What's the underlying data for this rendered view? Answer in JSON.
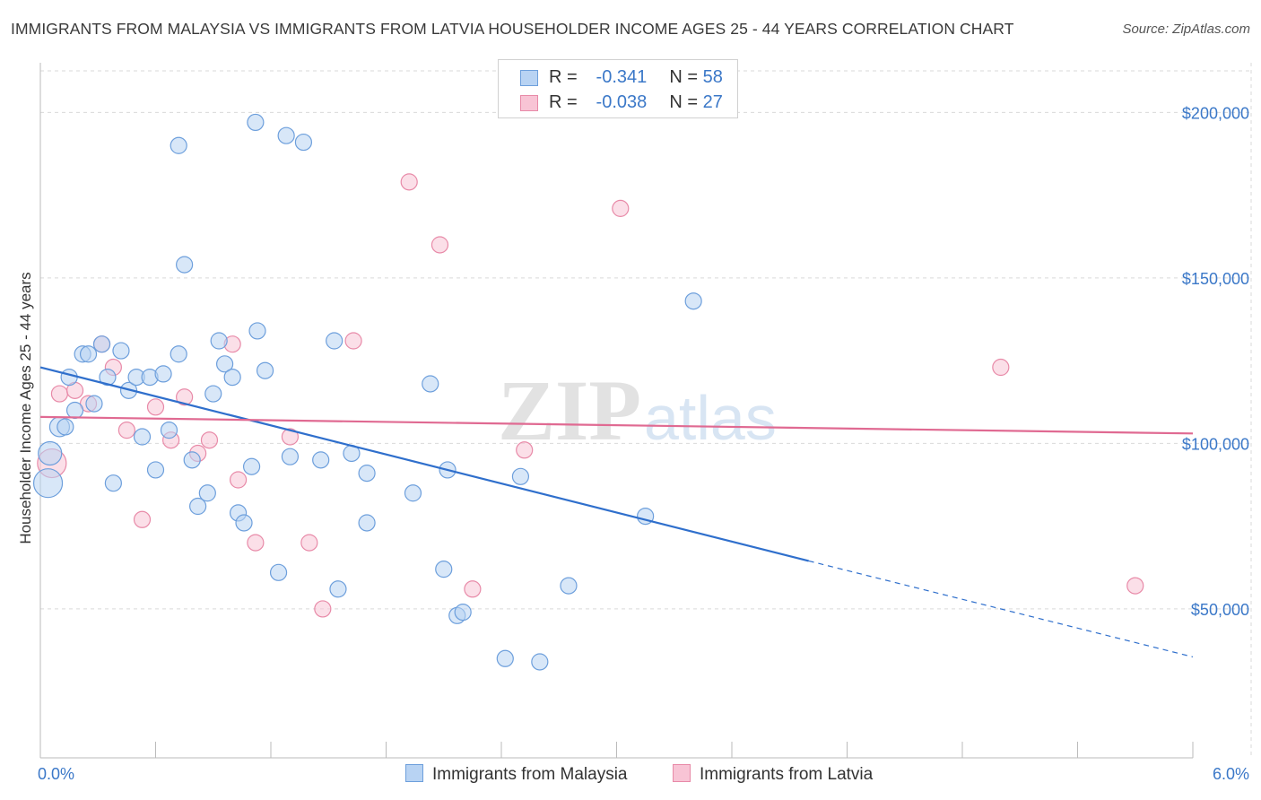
{
  "title": "IMMIGRANTS FROM MALAYSIA VS IMMIGRANTS FROM LATVIA HOUSEHOLDER INCOME AGES 25 - 44 YEARS CORRELATION CHART",
  "source": "Source: ZipAtlas.com",
  "watermark": {
    "zip": "ZIP",
    "atlas": "atlas"
  },
  "legend": {
    "r_label": "R =",
    "n_label": "N =",
    "rows": [
      {
        "r": "-0.341",
        "n": "58"
      },
      {
        "r": "-0.038",
        "n": "27"
      }
    ]
  },
  "bottom_legend": [
    "Immigrants from Malaysia",
    "Immigrants from Latvia"
  ],
  "colors": {
    "malaysia_fill": "#b8d3f3",
    "malaysia_stroke": "#6d9fdc",
    "malaysia_line": "#2f6fcc",
    "latvia_fill": "#f8c4d5",
    "latvia_stroke": "#e88aa8",
    "latvia_line": "#e06a92",
    "tick_text": "#3b78c8",
    "grid": "#d9d9d9"
  },
  "chart_data": {
    "type": "scatter",
    "title": "IMMIGRANTS FROM MALAYSIA VS IMMIGRANTS FROM LATVIA HOUSEHOLDER INCOME AGES 25 - 44 YEARS CORRELATION CHART",
    "xlabel": "",
    "ylabel": "Householder Income Ages 25 - 44 years",
    "xlim": [
      0,
      6
    ],
    "ylim": [
      5000,
      215000
    ],
    "x_tick_labels": [
      "0.0%",
      "6.0%"
    ],
    "y_ticks": [
      50000,
      100000,
      150000,
      200000
    ],
    "y_tick_labels": [
      "$50,000",
      "$100,000",
      "$150,000",
      "$200,000"
    ],
    "grid": true,
    "legend_position": "top-center",
    "series": [
      {
        "name": "Immigrants from Malaysia",
        "r": -0.341,
        "n": 58,
        "trend": {
          "x0": 0.0,
          "y0": 123000,
          "x1": 4.0,
          "y1": 64500,
          "dash_x1": 6.0,
          "dash_y1": 35500
        },
        "points": [
          [
            0.04,
            88000,
            16
          ],
          [
            0.05,
            97000,
            13
          ],
          [
            0.1,
            105000,
            11
          ],
          [
            0.13,
            105000,
            9
          ],
          [
            0.15,
            120000,
            9
          ],
          [
            0.18,
            110000,
            9
          ],
          [
            0.22,
            127000,
            9
          ],
          [
            0.25,
            127000,
            9
          ],
          [
            0.28,
            112000,
            9
          ],
          [
            0.32,
            130000,
            9
          ],
          [
            0.35,
            120000,
            9
          ],
          [
            0.38,
            88000,
            9
          ],
          [
            0.42,
            128000,
            9
          ],
          [
            0.46,
            116000,
            9
          ],
          [
            0.5,
            120000,
            9
          ],
          [
            0.53,
            102000,
            9
          ],
          [
            0.57,
            120000,
            9
          ],
          [
            0.6,
            92000,
            9
          ],
          [
            0.64,
            121000,
            9
          ],
          [
            0.67,
            104000,
            9
          ],
          [
            0.72,
            127000,
            9
          ],
          [
            0.79,
            95000,
            9
          ],
          [
            0.82,
            81000,
            9
          ],
          [
            0.87,
            85000,
            9
          ],
          [
            0.9,
            115000,
            9
          ],
          [
            0.93,
            131000,
            9
          ],
          [
            0.96,
            124000,
            9
          ],
          [
            1.0,
            120000,
            9
          ],
          [
            1.03,
            79000,
            9
          ],
          [
            1.06,
            76000,
            9
          ],
          [
            1.1,
            93000,
            9
          ],
          [
            1.13,
            134000,
            9
          ],
          [
            1.17,
            122000,
            9
          ],
          [
            1.24,
            61000,
            9
          ],
          [
            1.3,
            96000,
            9
          ],
          [
            1.46,
            95000,
            9
          ],
          [
            1.55,
            56000,
            9
          ],
          [
            1.62,
            97000,
            9
          ],
          [
            1.7,
            76000,
            9
          ],
          [
            1.7,
            91000,
            9
          ],
          [
            1.94,
            85000,
            9
          ],
          [
            2.03,
            118000,
            9
          ],
          [
            2.1,
            62000,
            9
          ],
          [
            2.12,
            92000,
            9
          ],
          [
            2.17,
            48000,
            9
          ],
          [
            2.2,
            49000,
            9
          ],
          [
            2.42,
            35000,
            9
          ],
          [
            2.5,
            90000,
            9
          ],
          [
            2.6,
            34000,
            9
          ],
          [
            2.75,
            57000,
            9
          ],
          [
            3.15,
            78000,
            9
          ],
          [
            3.4,
            143000,
            9
          ],
          [
            0.72,
            190000,
            9
          ],
          [
            0.75,
            154000,
            9
          ],
          [
            1.12,
            197000,
            9
          ],
          [
            1.28,
            193000,
            9
          ],
          [
            1.37,
            191000,
            9
          ],
          [
            1.53,
            131000,
            9
          ]
        ]
      },
      {
        "name": "Immigrants from Latvia",
        "r": -0.038,
        "n": 27,
        "trend": {
          "x0": 0.0,
          "y0": 108000,
          "x1": 6.0,
          "y1": 103000
        },
        "points": [
          [
            0.06,
            94000,
            16
          ],
          [
            0.1,
            115000,
            9
          ],
          [
            0.18,
            116000,
            9
          ],
          [
            0.25,
            112000,
            9
          ],
          [
            0.32,
            130000,
            9
          ],
          [
            0.38,
            123000,
            9
          ],
          [
            0.45,
            104000,
            9
          ],
          [
            0.53,
            77000,
            9
          ],
          [
            0.6,
            111000,
            9
          ],
          [
            0.68,
            101000,
            9
          ],
          [
            0.75,
            114000,
            9
          ],
          [
            0.82,
            97000,
            9
          ],
          [
            0.88,
            101000,
            9
          ],
          [
            1.0,
            130000,
            9
          ],
          [
            1.03,
            89000,
            9
          ],
          [
            1.12,
            70000,
            9
          ],
          [
            1.3,
            102000,
            9
          ],
          [
            1.4,
            70000,
            9
          ],
          [
            1.47,
            50000,
            9
          ],
          [
            1.63,
            131000,
            9
          ],
          [
            1.92,
            179000,
            9
          ],
          [
            2.08,
            160000,
            9
          ],
          [
            2.25,
            56000,
            9
          ],
          [
            2.52,
            98000,
            9
          ],
          [
            3.02,
            171000,
            9
          ],
          [
            5.0,
            123000,
            9
          ],
          [
            5.7,
            57000,
            9
          ]
        ]
      }
    ]
  }
}
